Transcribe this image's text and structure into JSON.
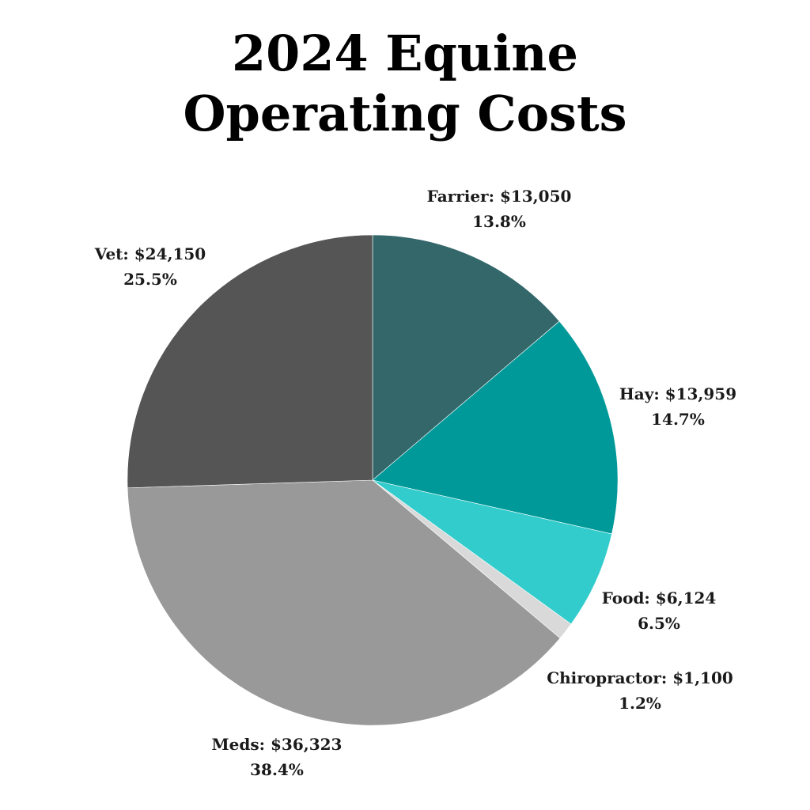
{
  "title_line1": "2024 Equine",
  "title_line2": "Operating Costs",
  "chart_data": {
    "type": "pie",
    "title": "2024 Equine Operating Costs",
    "start_angle_deg": 0,
    "direction": "clockwise",
    "slices": [
      {
        "name": "Farrier",
        "amount": "$13,050",
        "value": 13050,
        "percent": "13.8%",
        "color": "#33676a"
      },
      {
        "name": "Hay",
        "amount": "$13,959",
        "value": 13959,
        "percent": "14.7%",
        "color": "#009999"
      },
      {
        "name": "Food",
        "amount": "$6,124",
        "value": 6124,
        "percent": "6.5%",
        "color": "#33cccc"
      },
      {
        "name": "Chiropractor",
        "amount": "$1,100",
        "value": 1100,
        "percent": "1.2%",
        "color": "#d9d9d9"
      },
      {
        "name": "Meds",
        "amount": "$36,323",
        "value": 36323,
        "percent": "38.4%",
        "color": "#999999"
      },
      {
        "name": "Vet",
        "amount": "$24,150",
        "value": 24150,
        "percent": "25.5%",
        "color": "#555555"
      }
    ]
  }
}
